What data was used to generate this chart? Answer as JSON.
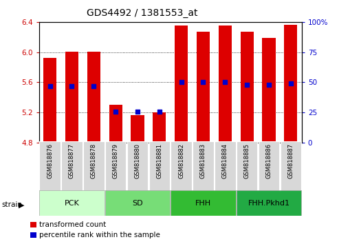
{
  "title": "GDS4492 / 1381553_at",
  "samples": [
    "GSM818876",
    "GSM818877",
    "GSM818878",
    "GSM818879",
    "GSM818880",
    "GSM818881",
    "GSM818882",
    "GSM818883",
    "GSM818884",
    "GSM818885",
    "GSM818886",
    "GSM818887"
  ],
  "transformed_count": [
    5.92,
    6.01,
    6.01,
    5.3,
    5.17,
    5.2,
    6.35,
    6.27,
    6.35,
    6.27,
    6.19,
    6.36
  ],
  "percentile_rank": [
    47,
    47,
    47,
    26,
    26,
    26,
    50,
    50,
    50,
    48,
    48,
    49
  ],
  "groups": [
    {
      "label": "PCK",
      "start": 0,
      "end": 3
    },
    {
      "label": "SD",
      "start": 3,
      "end": 6
    },
    {
      "label": "FHH",
      "start": 6,
      "end": 9
    },
    {
      "label": "FHH.Pkhd1",
      "start": 9,
      "end": 12
    }
  ],
  "group_colors": [
    "#ccffcc",
    "#77dd77",
    "#33bb33",
    "#22aa44"
  ],
  "ymin": 4.8,
  "ymax": 6.4,
  "yticks": [
    4.8,
    5.2,
    5.6,
    6.0,
    6.4
  ],
  "y2min": 0,
  "y2max": 100,
  "y2ticks": [
    0,
    25,
    50,
    75,
    100
  ],
  "bar_color": "#dd0000",
  "dot_color": "#0000cc",
  "bar_width": 0.6,
  "dot_size": 18,
  "tick_color_left": "#cc0000",
  "tick_color_right": "#0000cc",
  "tick_fontsize": 7.5,
  "title_fontsize": 10
}
